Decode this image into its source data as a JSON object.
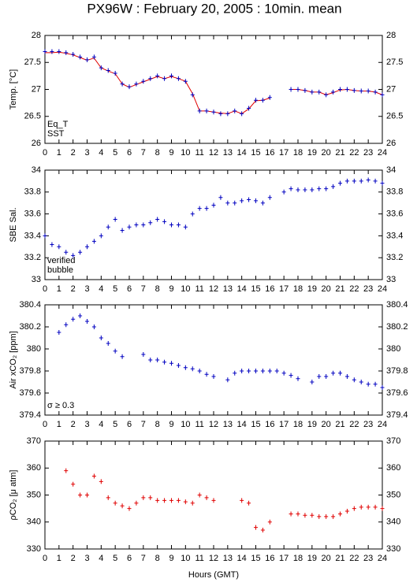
{
  "title": "PX96W : February 20, 2005 : 10min. mean",
  "xlabel": "Hours (GMT)",
  "chart_data": [
    {
      "type": "line",
      "ylabel": "Temp. [°C]",
      "xlim": [
        0,
        24
      ],
      "xticks": [
        0,
        1,
        2,
        3,
        4,
        5,
        6,
        7,
        8,
        9,
        10,
        11,
        12,
        13,
        14,
        15,
        16,
        17,
        18,
        19,
        20,
        21,
        22,
        23,
        24
      ],
      "ylim": [
        26,
        28
      ],
      "yticks": [
        26,
        26.5,
        27,
        27.5,
        28
      ],
      "x": [
        0,
        0.5,
        1,
        1.5,
        2,
        2.5,
        3,
        3.5,
        4,
        4.5,
        5,
        5.5,
        6,
        6.5,
        7,
        7.5,
        8,
        8.5,
        9,
        9.5,
        10,
        10.5,
        11,
        11.5,
        12,
        12.5,
        13,
        13.5,
        14,
        14.5,
        15,
        15.5,
        16,
        16.5,
        17,
        17.5,
        18,
        18.5,
        19,
        19.5,
        20,
        20.5,
        21,
        21.5,
        22,
        22.5,
        23,
        23.5,
        24
      ],
      "series": [
        {
          "name": "Eq_T",
          "color": "#e00000",
          "marker": "line",
          "values": [
            27.68,
            27.68,
            27.69,
            27.67,
            27.64,
            27.59,
            27.54,
            27.58,
            27.4,
            27.34,
            27.29,
            27.1,
            27.04,
            27.09,
            27.14,
            27.19,
            27.24,
            27.2,
            27.24,
            27.2,
            27.15,
            26.92,
            26.6,
            26.6,
            26.58,
            26.56,
            26.55,
            26.6,
            26.55,
            26.64,
            26.79,
            26.8,
            26.84,
            null,
            null,
            27.0,
            27.0,
            26.98,
            26.95,
            26.95,
            26.9,
            26.94,
            26.99,
            27.0,
            26.98,
            26.97,
            26.97,
            26.95,
            26.9
          ]
        },
        {
          "name": "SST",
          "color": "#0000c0",
          "marker": "plus",
          "values": [
            27.7,
            27.7,
            27.7,
            27.68,
            27.65,
            27.6,
            27.55,
            27.6,
            27.4,
            27.35,
            27.3,
            27.1,
            27.05,
            27.1,
            27.15,
            27.2,
            27.25,
            27.2,
            27.25,
            27.2,
            27.15,
            26.9,
            26.6,
            26.6,
            26.58,
            26.55,
            26.55,
            26.6,
            26.55,
            26.65,
            26.8,
            26.8,
            26.85,
            null,
            null,
            27.0,
            27.0,
            26.98,
            26.95,
            26.95,
            26.9,
            26.95,
            27.0,
            27.0,
            26.98,
            26.97,
            26.97,
            26.95,
            26.9
          ]
        }
      ]
    },
    {
      "type": "line",
      "ylabel": "SBE Sal.",
      "xlim": [
        0,
        24
      ],
      "xticks": [
        0,
        1,
        2,
        3,
        4,
        5,
        6,
        7,
        8,
        9,
        10,
        11,
        12,
        13,
        14,
        15,
        16,
        17,
        18,
        19,
        20,
        21,
        22,
        23,
        24
      ],
      "ylim": [
        33,
        34
      ],
      "yticks": [
        33,
        33.2,
        33.4,
        33.6,
        33.8,
        34
      ],
      "notes": [
        {
          "text": "bubble",
          "color": "#c000c0"
        }
      ],
      "x": [
        0,
        0.5,
        1,
        1.5,
        2,
        2.5,
        3,
        3.5,
        4,
        4.5,
        5,
        5.5,
        6,
        6.5,
        7,
        7.5,
        8,
        8.5,
        9,
        9.5,
        10,
        10.5,
        11,
        11.5,
        12,
        12.5,
        13,
        13.5,
        14,
        14.5,
        15,
        15.5,
        16,
        16.5,
        17,
        17.5,
        18,
        18.5,
        19,
        19.5,
        20,
        20.5,
        21,
        21.5,
        22,
        22.5,
        23,
        23.5,
        24
      ],
      "series": [
        {
          "name": "verified",
          "color": "#0000c0",
          "marker": "plus",
          "values": [
            33.4,
            33.32,
            33.3,
            33.25,
            33.22,
            33.25,
            33.3,
            33.35,
            33.4,
            33.48,
            33.55,
            33.45,
            33.48,
            33.5,
            33.5,
            33.52,
            33.55,
            33.53,
            33.5,
            33.5,
            33.48,
            33.6,
            33.65,
            33.65,
            33.68,
            33.75,
            33.7,
            33.7,
            33.72,
            33.73,
            33.72,
            33.7,
            33.75,
            null,
            33.8,
            33.83,
            33.82,
            33.82,
            33.82,
            33.83,
            33.83,
            33.85,
            33.88,
            33.9,
            33.9,
            33.9,
            33.91,
            33.9,
            33.88
          ]
        }
      ]
    },
    {
      "type": "line",
      "ylabel": "Air xCO₂ [ppm]",
      "xlim": [
        0,
        24
      ],
      "xticks": [
        0,
        1,
        2,
        3,
        4,
        5,
        6,
        7,
        8,
        9,
        10,
        11,
        12,
        13,
        14,
        15,
        16,
        17,
        18,
        19,
        20,
        21,
        22,
        23,
        24
      ],
      "ylim": [
        379.4,
        380.4
      ],
      "yticks": [
        379.4,
        379.6,
        379.8,
        380,
        380.2,
        380.4
      ],
      "notes": [
        {
          "text": "σ ≥ 0.3",
          "color": "#c000c0"
        }
      ],
      "x": [
        0,
        0.5,
        1,
        1.5,
        2,
        2.5,
        3,
        3.5,
        4,
        4.5,
        5,
        5.5,
        6,
        6.5,
        7,
        7.5,
        8,
        8.5,
        9,
        9.5,
        10,
        10.5,
        11,
        11.5,
        12,
        12.5,
        13,
        13.5,
        14,
        14.5,
        15,
        15.5,
        16,
        16.5,
        17,
        17.5,
        18,
        18.5,
        19,
        19.5,
        20,
        20.5,
        21,
        21.5,
        22,
        22.5,
        23,
        23.5,
        24
      ],
      "series": [
        {
          "color": "#0000c0",
          "marker": "plus",
          "values": [
            null,
            null,
            380.15,
            380.22,
            380.27,
            380.3,
            380.25,
            380.2,
            380.1,
            380.05,
            379.98,
            379.93,
            null,
            null,
            379.95,
            379.9,
            379.9,
            379.88,
            379.87,
            379.85,
            379.83,
            379.82,
            379.8,
            379.77,
            379.75,
            null,
            379.72,
            379.78,
            379.8,
            379.8,
            379.8,
            379.8,
            379.8,
            379.8,
            379.78,
            379.76,
            379.73,
            null,
            379.7,
            379.75,
            379.75,
            379.78,
            379.78,
            379.75,
            379.72,
            379.7,
            379.68,
            379.68,
            379.65
          ]
        }
      ]
    },
    {
      "type": "line",
      "ylabel": "ρCO₂ [μ atm]",
      "xlim": [
        0,
        24
      ],
      "xticks": [
        0,
        1,
        2,
        3,
        4,
        5,
        6,
        7,
        8,
        9,
        10,
        11,
        12,
        13,
        14,
        15,
        16,
        17,
        18,
        19,
        20,
        21,
        22,
        23,
        24
      ],
      "ylim": [
        330,
        370
      ],
      "yticks": [
        330,
        340,
        350,
        360,
        370
      ],
      "x": [
        0,
        0.5,
        1,
        1.5,
        2,
        2.5,
        3,
        3.5,
        4,
        4.5,
        5,
        5.5,
        6,
        6.5,
        7,
        7.5,
        8,
        8.5,
        9,
        9.5,
        10,
        10.5,
        11,
        11.5,
        12,
        12.5,
        13,
        13.5,
        14,
        14.5,
        15,
        15.5,
        16,
        16.5,
        17,
        17.5,
        18,
        18.5,
        19,
        19.5,
        20,
        20.5,
        21,
        21.5,
        22,
        22.5,
        23,
        23.5,
        24
      ],
      "series": [
        {
          "color": "#e00000",
          "marker": "plus",
          "values": [
            null,
            null,
            null,
            359,
            354,
            350,
            350,
            357,
            355,
            349,
            347,
            346,
            345,
            347,
            349,
            349,
            348,
            348,
            348,
            348,
            347.5,
            347,
            350,
            349,
            348,
            null,
            null,
            null,
            348,
            347,
            338,
            337,
            340,
            null,
            null,
            343,
            343,
            342.5,
            342.5,
            342,
            342,
            342,
            343,
            344,
            345,
            345.5,
            345.5,
            345.5,
            345
          ]
        }
      ]
    }
  ]
}
